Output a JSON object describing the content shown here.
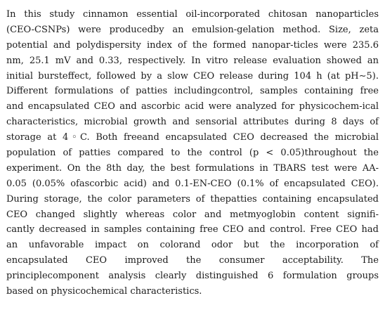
{
  "abstract": {
    "lines": [
      "In this study cinnamon essential oil-incorporated chitosan nanoparticles",
      "(CEO-CSNPs) were producedby an emulsion-gelation method. Size, zeta",
      "potential and polydispersity index of the formed nanopar-ticles were 235.6",
      "nm, 25.1 mV and 0.33, respectively. In vitro release evaluation showed an",
      "initial bursteffect, followed by a slow CEO release during 104 h (at pH∼5).",
      "Different formulations of patties includingcontrol, samples containing free",
      "and encapsulated CEO and ascorbic acid were analyzed for physicochem-ical",
      "characteristics, microbial growth and sensorial attributes during 8 days of",
      "storage at 4◦C. Both freeand encapsulated CEO decreased the microbial",
      "population of patties compared to the control (p < 0.05)throughout the",
      "experiment. On the 8th day, the best formulations in TBARS test were AA-",
      "0.05 (0.05% ofascorbic acid) and 0.1-EN-CEO (0.1% of encapsulated CEO).",
      "During storage, the color parameters of thepatties containing encapsulated",
      "CEO changed slightly whereas color and metmyoglobin content signifi-",
      "cantly decreased in samples containing free CEO and control. Free CEO had",
      "an unfavorable impact on colorand odor but the incorporation of",
      "encapsulated CEO improved the consumer acceptability. The",
      "principlecomponent analysis clearly distinguished 6 formulation groups",
      "based on physicochemical characteristics."
    ]
  }
}
